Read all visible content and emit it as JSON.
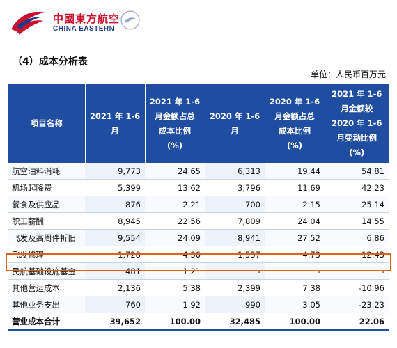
{
  "logo": {
    "cn": "中國東方航空",
    "en": "CHINA EASTERN"
  },
  "section_title": "（4）成本分析表",
  "unit": "单位：人民币百万元",
  "table": {
    "headers": [
      [
        "项目名称"
      ],
      [
        "2021 年 1-6",
        "月"
      ],
      [
        "2021 年 1-6",
        "月金额占总",
        "成本比例",
        "(%)"
      ],
      [
        "2020 年 1-6",
        "月"
      ],
      [
        "2020 年 1-6",
        "月金额占总",
        "成本比例",
        "(%)"
      ],
      [
        "2021 年 1-6",
        "月金额较",
        "2020 年 1-6",
        "月变动比例",
        "(%)"
      ]
    ],
    "rows": [
      [
        "航空油料消耗",
        "9,773",
        "24.65",
        "6,313",
        "19.44",
        "54.81"
      ],
      [
        "机场起降费",
        "5,399",
        "13.62",
        "3,796",
        "11.69",
        "42.23"
      ],
      [
        "餐食及供应品",
        "876",
        "2.21",
        "700",
        "2.15",
        "25.14"
      ],
      [
        "职工薪酬",
        "8,945",
        "22.56",
        "7,809",
        "24.04",
        "14.55"
      ],
      [
        "飞发及高周件折旧",
        "9,554",
        "24.09",
        "8,941",
        "27.52",
        "6.86"
      ],
      [
        "飞发修理",
        "1,728",
        "4.36",
        "1,537",
        "4.73",
        "12.43"
      ],
      [
        "民航基础设施基金",
        "481",
        "1.21",
        "-",
        "-",
        "-"
      ],
      [
        "其他营运成本",
        "2,136",
        "5.38",
        "2,399",
        "7.38",
        "-10.96"
      ],
      [
        "其他业务支出",
        "760",
        "1.92",
        "990",
        "3.05",
        "-23.23"
      ]
    ],
    "total": [
      "营业成本合计",
      "39,652",
      "100.00",
      "32,485",
      "100.00",
      "22.06"
    ]
  },
  "colors": {
    "header_bg": "#1f4da0",
    "highlight": "#e0611c",
    "brand_red": "#c8102e"
  }
}
